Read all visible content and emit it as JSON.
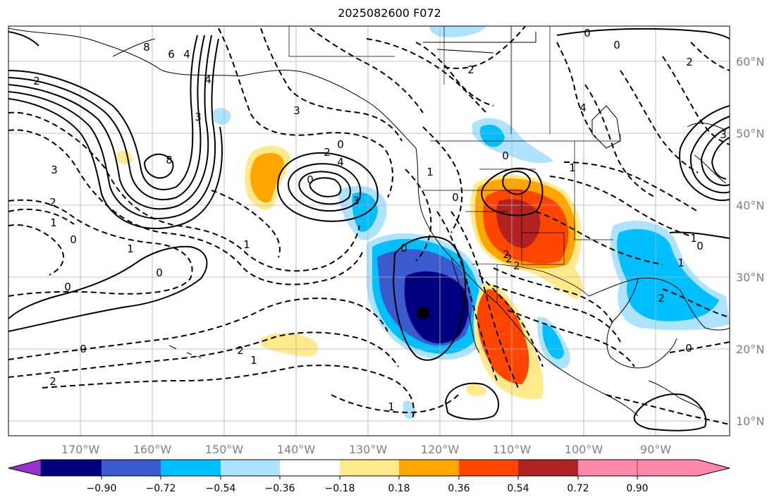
{
  "title": "2025082600 F072",
  "map": {
    "lon_labels": [
      "170°W",
      "160°W",
      "150°W",
      "140°W",
      "130°W",
      "120°W",
      "110°W",
      "100°W",
      "90°W"
    ],
    "lat_labels": [
      "60°N",
      "50°N",
      "40°N",
      "30°N",
      "20°N",
      "10°N"
    ],
    "contour_labels": [
      "8",
      "6",
      "4",
      "2",
      "0",
      "2",
      "3",
      "2",
      "1",
      "0",
      "1",
      "0",
      "3",
      "0",
      "2",
      "1",
      "2",
      "0",
      "1",
      "0",
      "1",
      "2",
      "4",
      "0",
      "3",
      "8",
      "0",
      "2",
      "3",
      "1",
      "0",
      "2",
      "4",
      "0",
      "1",
      "0",
      "2",
      "1",
      "0",
      "2",
      "3",
      "4",
      "2",
      "1",
      "0"
    ]
  },
  "colorbar": {
    "colors": [
      "#9932cc",
      "#000080",
      "#3a5acd",
      "#00bfff",
      "#aee3ff",
      "#ffffff",
      "#ffe98a",
      "#ffa500",
      "#ff4500",
      "#b22222",
      "#ff88aa"
    ],
    "tick_labels": [
      "−0.90",
      "−0.72",
      "−0.54",
      "−0.36",
      "−0.18",
      "0.18",
      "0.36",
      "0.54",
      "0.72",
      "0.90"
    ]
  }
}
